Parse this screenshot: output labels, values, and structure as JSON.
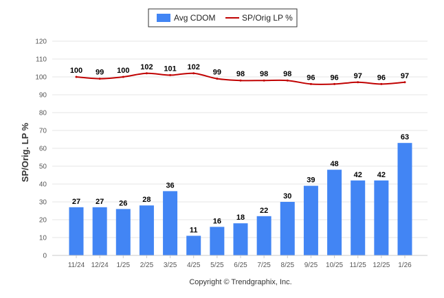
{
  "chart_data": {
    "type": "bar",
    "title": "",
    "xlabel": "",
    "ylabel": "SP/Orig. LP %",
    "ylim": [
      0,
      120
    ],
    "yticks": [
      0,
      10,
      20,
      30,
      40,
      50,
      60,
      70,
      80,
      90,
      100,
      110,
      120
    ],
    "grid": true,
    "legend_position": "top-center",
    "categories": [
      "11/24",
      "12/24",
      "1/25",
      "2/25",
      "3/25",
      "4/25",
      "5/25",
      "6/25",
      "7/25",
      "8/25",
      "9/25",
      "10/25",
      "11/25",
      "12/25",
      "1/26"
    ],
    "series": [
      {
        "name": "Avg CDOM",
        "type": "bar",
        "color": "#4285f4",
        "values": [
          27,
          27,
          26,
          28,
          36,
          11,
          16,
          18,
          22,
          30,
          39,
          48,
          42,
          42,
          63
        ]
      },
      {
        "name": "SP/Orig LP %",
        "type": "line",
        "color": "#c00000",
        "values": [
          100,
          99,
          100,
          102,
          101,
          102,
          99,
          98,
          98,
          98,
          96,
          96,
          97,
          96,
          97
        ]
      }
    ]
  },
  "footer": {
    "copyright": "Copyright © Trendgraphix, Inc."
  }
}
